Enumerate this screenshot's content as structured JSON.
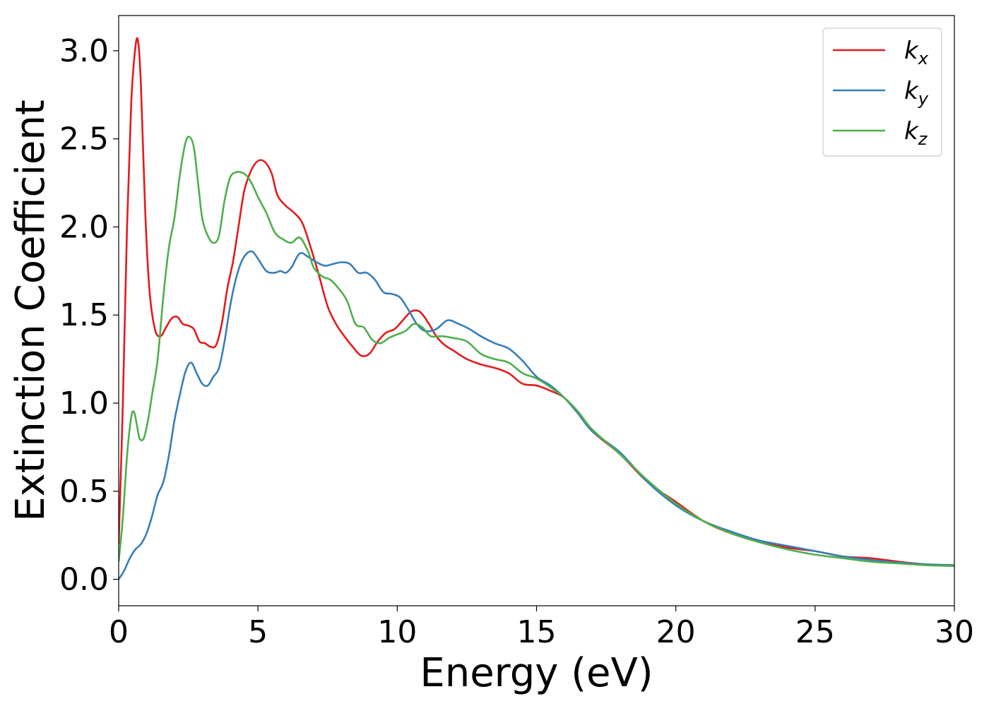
{
  "chart_data": {
    "type": "line",
    "title": "",
    "xlabel": "Energy (eV)",
    "ylabel": "Extinction Coefficient",
    "xlim": [
      0,
      30
    ],
    "ylim": [
      -0.15,
      3.2
    ],
    "xticks": [
      0,
      5,
      10,
      15,
      20,
      25,
      30
    ],
    "xtick_labels": [
      "0",
      "5",
      "10",
      "15",
      "20",
      "25",
      "30"
    ],
    "yticks": [
      0.0,
      0.5,
      1.0,
      1.5,
      2.0,
      2.5,
      3.0
    ],
    "ytick_labels": [
      "0.0",
      "0.5",
      "1.0",
      "1.5",
      "2.0",
      "2.5",
      "3.0"
    ],
    "grid": false,
    "legend_position": "top-right",
    "series": [
      {
        "name": "k",
        "subscript": "x",
        "color": "#e41a1c",
        "x": [
          0,
          0.15,
          0.3,
          0.45,
          0.6,
          0.7,
          0.8,
          0.95,
          1.1,
          1.3,
          1.5,
          1.7,
          1.9,
          2.1,
          2.3,
          2.5,
          2.7,
          2.9,
          3.1,
          3.3,
          3.5,
          3.7,
          3.9,
          4.1,
          4.3,
          4.5,
          4.7,
          4.9,
          5.1,
          5.3,
          5.5,
          5.7,
          6.0,
          6.3,
          6.6,
          6.9,
          7.2,
          7.5,
          7.8,
          8.1,
          8.4,
          8.7,
          9.0,
          9.3,
          9.6,
          9.9,
          10.2,
          10.5,
          10.8,
          11.1,
          11.4,
          11.7,
          12.0,
          12.5,
          13.0,
          13.5,
          14.0,
          14.5,
          15.0,
          15.5,
          16.0,
          16.5,
          17.0,
          18.0,
          19.0,
          20.0,
          21.0,
          22.0,
          23.0,
          24.0,
          25.0,
          26.0,
          27.0,
          28.0,
          29.0,
          30.0
        ],
        "y": [
          0.2,
          1.0,
          2.0,
          2.7,
          3.02,
          3.05,
          2.8,
          2.1,
          1.65,
          1.42,
          1.38,
          1.43,
          1.48,
          1.49,
          1.45,
          1.44,
          1.42,
          1.35,
          1.34,
          1.32,
          1.33,
          1.45,
          1.65,
          1.8,
          2.0,
          2.2,
          2.3,
          2.36,
          2.38,
          2.36,
          2.3,
          2.18,
          2.12,
          2.08,
          2.02,
          1.88,
          1.72,
          1.55,
          1.45,
          1.38,
          1.32,
          1.27,
          1.28,
          1.35,
          1.4,
          1.42,
          1.47,
          1.52,
          1.52,
          1.46,
          1.38,
          1.33,
          1.3,
          1.25,
          1.22,
          1.2,
          1.17,
          1.11,
          1.1,
          1.07,
          1.03,
          0.94,
          0.84,
          0.71,
          0.55,
          0.44,
          0.33,
          0.26,
          0.22,
          0.18,
          0.16,
          0.13,
          0.12,
          0.1,
          0.085,
          0.08
        ]
      },
      {
        "name": "k",
        "subscript": "y",
        "color": "#377eb8",
        "x": [
          0,
          0.2,
          0.4,
          0.6,
          0.8,
          1.0,
          1.2,
          1.4,
          1.6,
          1.8,
          2.0,
          2.2,
          2.4,
          2.6,
          2.8,
          3.0,
          3.2,
          3.4,
          3.6,
          3.8,
          4.0,
          4.2,
          4.4,
          4.6,
          4.8,
          5.0,
          5.3,
          5.6,
          5.8,
          6.0,
          6.2,
          6.5,
          6.8,
          7.1,
          7.4,
          7.7,
          8.0,
          8.3,
          8.6,
          8.9,
          9.2,
          9.5,
          9.8,
          10.1,
          10.4,
          10.7,
          11.0,
          11.4,
          11.8,
          12.2,
          12.6,
          13.0,
          13.5,
          14.0,
          14.5,
          15.0,
          15.5,
          16.0,
          16.5,
          17.0,
          18.0,
          19.0,
          20.0,
          21.0,
          22.0,
          23.0,
          24.0,
          25.0,
          26.0,
          27.0,
          28.0,
          29.0,
          30.0
        ],
        "y": [
          0.0,
          0.05,
          0.12,
          0.17,
          0.2,
          0.26,
          0.36,
          0.48,
          0.55,
          0.7,
          0.9,
          1.05,
          1.18,
          1.23,
          1.17,
          1.11,
          1.1,
          1.15,
          1.2,
          1.35,
          1.55,
          1.7,
          1.8,
          1.85,
          1.86,
          1.82,
          1.75,
          1.74,
          1.75,
          1.74,
          1.77,
          1.85,
          1.83,
          1.8,
          1.78,
          1.79,
          1.8,
          1.79,
          1.74,
          1.74,
          1.7,
          1.63,
          1.62,
          1.6,
          1.53,
          1.45,
          1.41,
          1.42,
          1.47,
          1.45,
          1.42,
          1.38,
          1.34,
          1.31,
          1.24,
          1.15,
          1.1,
          1.03,
          0.94,
          0.84,
          0.72,
          0.55,
          0.42,
          0.33,
          0.27,
          0.22,
          0.19,
          0.16,
          0.13,
          0.11,
          0.095,
          0.085,
          0.08
        ]
      },
      {
        "name": "k",
        "subscript": "z",
        "color": "#4daf4a",
        "x": [
          0,
          0.15,
          0.3,
          0.45,
          0.55,
          0.65,
          0.75,
          0.9,
          1.05,
          1.2,
          1.4,
          1.6,
          1.8,
          2.0,
          2.2,
          2.4,
          2.55,
          2.7,
          2.85,
          3.0,
          3.2,
          3.4,
          3.6,
          3.8,
          4.0,
          4.2,
          4.4,
          4.6,
          4.8,
          5.0,
          5.3,
          5.6,
          5.9,
          6.2,
          6.5,
          6.8,
          7.0,
          7.3,
          7.6,
          7.9,
          8.2,
          8.5,
          8.8,
          9.1,
          9.4,
          9.7,
          10.0,
          10.3,
          10.6,
          10.9,
          11.2,
          11.6,
          12.0,
          12.5,
          13.0,
          13.5,
          14.0,
          14.5,
          15.0,
          15.5,
          16.0,
          16.5,
          17.0,
          18.0,
          19.0,
          20.0,
          21.0,
          22.0,
          23.0,
          24.0,
          25.0,
          26.0,
          27.0,
          28.0,
          29.0,
          30.0
        ],
        "y": [
          0.1,
          0.35,
          0.7,
          0.92,
          0.95,
          0.88,
          0.8,
          0.8,
          0.9,
          1.05,
          1.25,
          1.6,
          1.88,
          2.05,
          2.3,
          2.48,
          2.51,
          2.45,
          2.25,
          2.05,
          1.95,
          1.91,
          1.95,
          2.15,
          2.28,
          2.31,
          2.31,
          2.29,
          2.24,
          2.17,
          2.08,
          1.97,
          1.93,
          1.91,
          1.94,
          1.86,
          1.77,
          1.72,
          1.7,
          1.65,
          1.58,
          1.45,
          1.43,
          1.36,
          1.34,
          1.37,
          1.39,
          1.41,
          1.45,
          1.43,
          1.38,
          1.38,
          1.37,
          1.35,
          1.28,
          1.25,
          1.23,
          1.17,
          1.14,
          1.09,
          1.03,
          0.95,
          0.85,
          0.71,
          0.56,
          0.43,
          0.33,
          0.26,
          0.21,
          0.17,
          0.14,
          0.12,
          0.1,
          0.09,
          0.08,
          0.075
        ]
      }
    ]
  }
}
